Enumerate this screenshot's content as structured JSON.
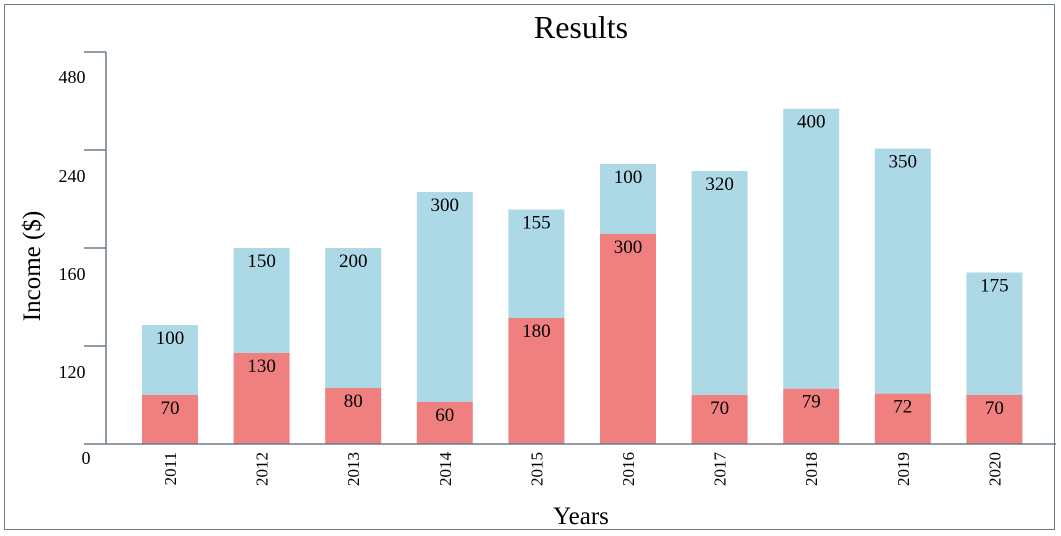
{
  "chart_data": {
    "type": "bar",
    "stacked": true,
    "title": "Results",
    "xlabel": "Years",
    "ylabel": "Income ($)",
    "categories": [
      "2011",
      "2012",
      "2013",
      "2014",
      "2015",
      "2016",
      "2017",
      "2018",
      "2019",
      "2020"
    ],
    "series": [
      {
        "color": "#f08080",
        "values": [
          70,
          130,
          80,
          60,
          180,
          300,
          70,
          79,
          72,
          70
        ]
      },
      {
        "color": "#add8e6",
        "values": [
          100,
          150,
          200,
          300,
          155,
          100,
          320,
          400,
          350,
          175
        ]
      }
    ],
    "y_ticks": [
      "0",
      "120",
      "160",
      "240",
      "480"
    ],
    "legend": "none",
    "grid": false
  }
}
